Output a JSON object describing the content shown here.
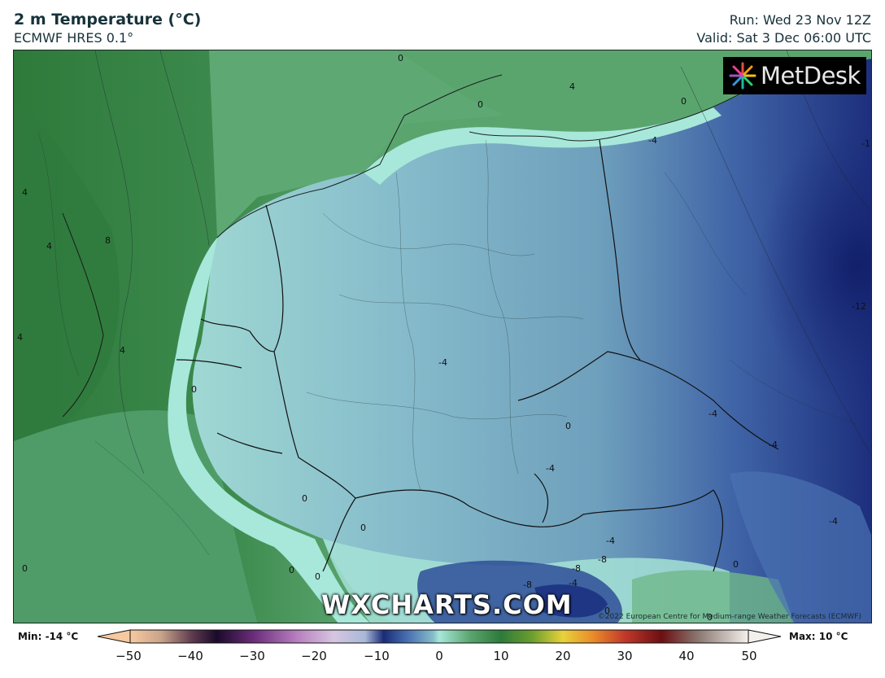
{
  "header": {
    "title": "2 m Temperature (°C)",
    "model": "ECMWF HRES 0.1°",
    "run": "Run: Wed 23 Nov 12Z",
    "valid": "Valid: Sat 3 Dec 06:00 UTC"
  },
  "branding": {
    "logo_text": "MetDesk",
    "watermark": "WXCHARTS.COM",
    "copyright": "©2022 European Centre for Medium-range Weather Forecasts (ECMWF)"
  },
  "legend": {
    "min_label": "Min: -14 °C",
    "max_label": "Max: 10 °C",
    "ticks": [
      "−50",
      "−40",
      "−30",
      "−20",
      "−10",
      "0",
      "10",
      "20",
      "30",
      "40",
      "50"
    ]
  },
  "contour_labels": [
    "4",
    "4",
    "8",
    "4",
    "4",
    "0",
    "0",
    "0",
    "4",
    "-1",
    "-12",
    "-4",
    "0",
    "-4",
    "-4",
    "-4",
    "-4",
    "0",
    "0",
    "0",
    "0",
    "-4",
    "-8",
    "-8",
    "-8",
    "-4",
    "0",
    "0",
    "0",
    "-4",
    "0",
    "0"
  ],
  "colors": {
    "green_dark": "#2e7a3b",
    "green_mid": "#4c9a62",
    "green_light": "#74b88a",
    "teal": "#a7e8da",
    "blue_light": "#86bccb",
    "blue_mid": "#6a9ab8",
    "blue_dark": "#2f4f98",
    "navy": "#1a2c78"
  }
}
